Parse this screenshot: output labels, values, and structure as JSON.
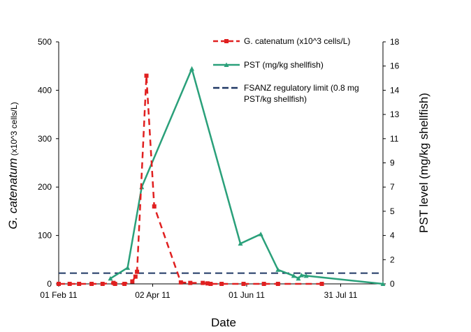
{
  "chart_data": {
    "type": "line",
    "xlabel": "Date",
    "ylabel_left": {
      "italic": "G. catenatum",
      "normal": " (x10^3 cells/L)"
    },
    "ylabel_right": "PST level (mg/kg shellfish)",
    "x_ticks": [
      "01 Feb 11",
      "02 Apr 11",
      "01 Jun 11",
      "31 Jul 11"
    ],
    "y_left_ticks": [
      "0",
      "100",
      "200",
      "300",
      "400",
      "500"
    ],
    "y_right_ticks": [
      "0",
      "2",
      "4",
      "5",
      "7",
      "9",
      "11",
      "13",
      "14",
      "16",
      "18"
    ],
    "ylim_left": [
      0,
      500
    ],
    "ylim_right": [
      0,
      18
    ],
    "xlim": [
      "2011-02-01",
      "2011-08-27"
    ],
    "legend": {
      "position": "top-right",
      "items": [
        {
          "key": "gcat",
          "label_lines": [
            "G. catenatum (x10^3 cells/L)"
          ]
        },
        {
          "key": "pst",
          "label_lines": [
            "PST (mg/kg shellfish)"
          ]
        },
        {
          "key": "limit",
          "label_lines": [
            "FSANZ regulatory limit (0.8 mg",
            "PST/kg shellfish)"
          ]
        }
      ]
    },
    "series": [
      {
        "key": "gcat",
        "name": "G. catenatum (x10^3 cells/L)",
        "axis": "left",
        "color": "#e02020",
        "style": "dashed",
        "marker": "square",
        "points": [
          [
            "2011-02-01",
            0
          ],
          [
            "2011-02-08",
            0
          ],
          [
            "2011-02-14",
            0
          ],
          [
            "2011-02-22",
            0
          ],
          [
            "2011-03-01",
            0
          ],
          [
            "2011-03-08",
            2
          ],
          [
            "2011-03-09",
            0
          ],
          [
            "2011-03-15",
            0
          ],
          [
            "2011-03-20",
            5
          ],
          [
            "2011-03-22",
            15
          ],
          [
            "2011-03-23",
            25
          ],
          [
            "2011-03-29",
            430
          ],
          [
            "2011-04-03",
            160
          ],
          [
            "2011-04-20",
            3
          ],
          [
            "2011-04-26",
            2
          ],
          [
            "2011-05-04",
            2
          ],
          [
            "2011-05-07",
            1
          ],
          [
            "2011-05-09",
            0
          ],
          [
            "2011-05-16",
            0
          ],
          [
            "2011-05-30",
            0
          ],
          [
            "2011-06-12",
            0
          ],
          [
            "2011-06-21",
            0
          ],
          [
            "2011-07-19",
            0
          ]
        ]
      },
      {
        "key": "pst",
        "name": "PST (mg/kg shellfish)",
        "axis": "right",
        "color": "#2aa07a",
        "style": "solid",
        "marker": "triangle",
        "points": [
          [
            "2011-03-06",
            0.4
          ],
          [
            "2011-03-17",
            1.2
          ],
          [
            "2011-03-26",
            7.2
          ],
          [
            "2011-04-27",
            16.0
          ],
          [
            "2011-05-28",
            3.0
          ],
          [
            "2011-06-10",
            3.7
          ],
          [
            "2011-06-21",
            1.05
          ],
          [
            "2011-07-01",
            0.6
          ],
          [
            "2011-07-04",
            0.4
          ],
          [
            "2011-07-06",
            0.65
          ],
          [
            "2011-07-09",
            0.6
          ],
          [
            "2011-08-27",
            0.0
          ]
        ]
      },
      {
        "key": "limit",
        "name": "FSANZ regulatory limit (0.8 mg PST/kg shellfish)",
        "axis": "right",
        "color": "#1f3864",
        "style": "dashed",
        "marker": "none",
        "points": [
          [
            "2011-02-01",
            0.8
          ],
          [
            "2011-08-27",
            0.8
          ]
        ]
      }
    ]
  }
}
